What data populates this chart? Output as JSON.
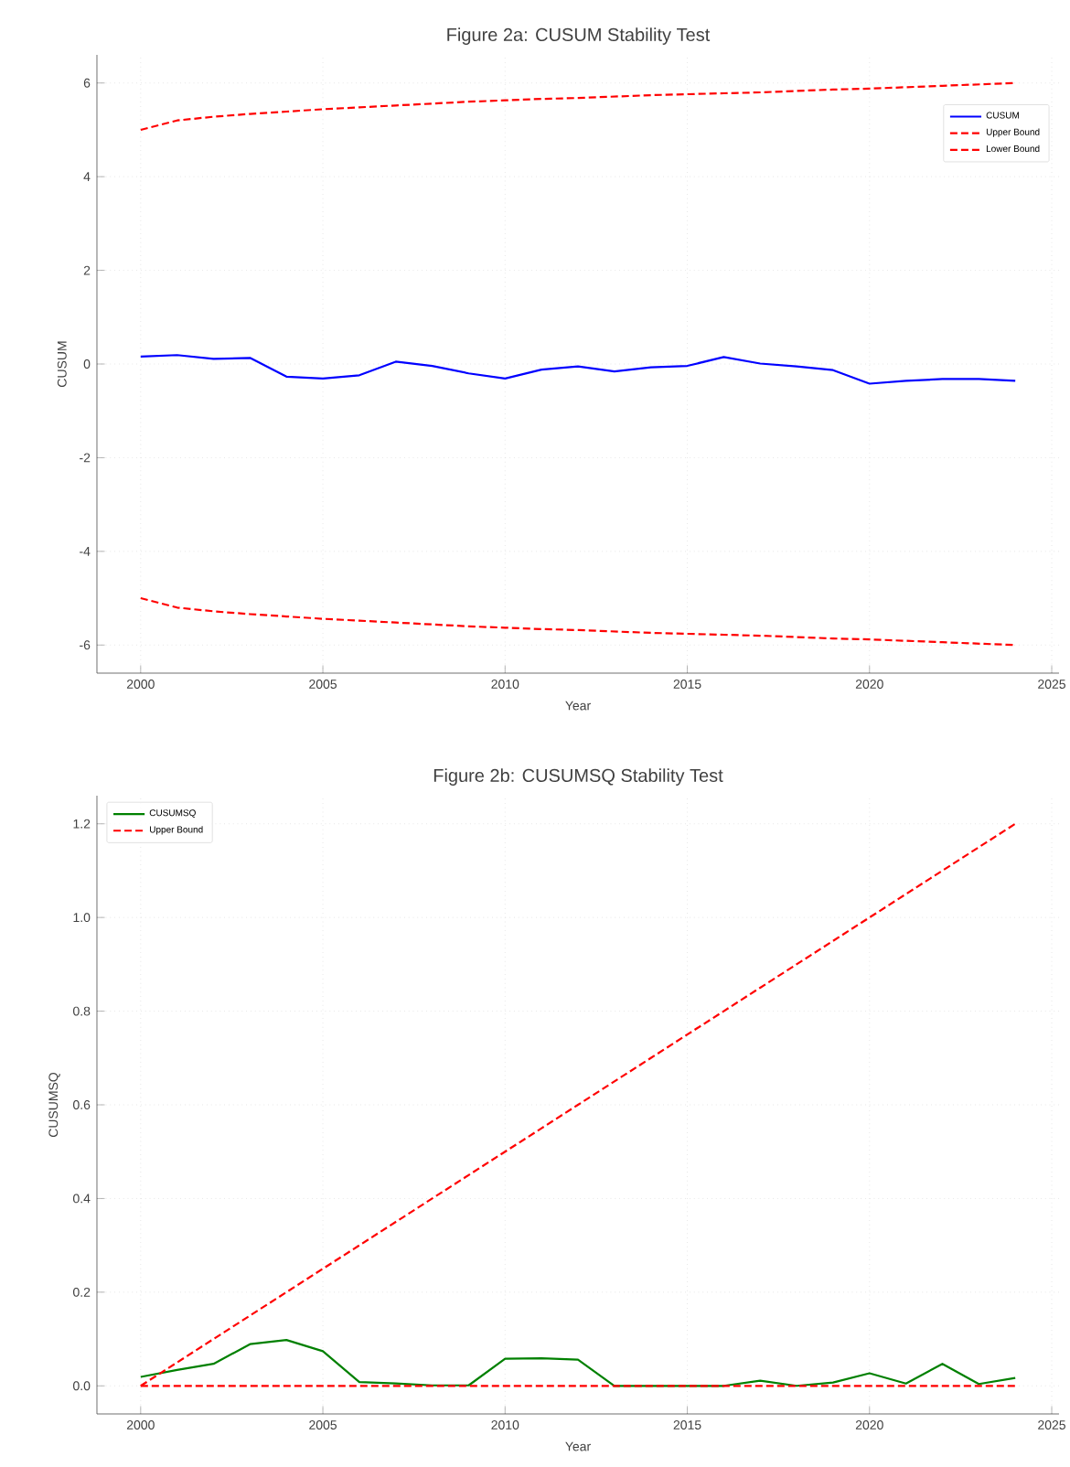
{
  "chart_data": [
    {
      "type": "line",
      "title": "Figure 2a: CUSUM Stability Test",
      "xlabel": "Year",
      "ylabel": "CUSUM",
      "x": [
        2000,
        2001,
        2002,
        2003,
        2004,
        2005,
        2006,
        2007,
        2008,
        2009,
        2010,
        2011,
        2012,
        2013,
        2014,
        2015,
        2016,
        2017,
        2018,
        2019,
        2020,
        2021,
        2022,
        2023,
        2024
      ],
      "series": [
        {
          "name": "CUSUM",
          "color": "#0000ff",
          "line_style": "solid",
          "values": [
            0.16,
            0.19,
            0.11,
            0.13,
            -0.27,
            -0.31,
            -0.24,
            0.05,
            -0.04,
            -0.2,
            -0.31,
            -0.12,
            -0.05,
            -0.16,
            -0.07,
            -0.04,
            0.15,
            0.01,
            -0.05,
            -0.13,
            -0.42,
            -0.36,
            -0.32,
            -0.32,
            -0.36
          ]
        },
        {
          "name": "Upper Bound",
          "color": "#ff0000",
          "line_style": "dashed",
          "values": [
            5.0,
            5.2,
            5.28,
            5.34,
            5.39,
            5.44,
            5.48,
            5.52,
            5.56,
            5.6,
            5.63,
            5.66,
            5.68,
            5.71,
            5.74,
            5.76,
            5.78,
            5.8,
            5.83,
            5.86,
            5.88,
            5.91,
            5.94,
            5.97,
            6.0
          ]
        },
        {
          "name": "Lower Bound",
          "color": "#ff0000",
          "line_style": "dashed",
          "values": [
            -5.0,
            -5.2,
            -5.28,
            -5.34,
            -5.39,
            -5.44,
            -5.48,
            -5.52,
            -5.56,
            -5.6,
            -5.63,
            -5.66,
            -5.68,
            -5.71,
            -5.74,
            -5.76,
            -5.78,
            -5.8,
            -5.83,
            -5.86,
            -5.88,
            -5.91,
            -5.94,
            -5.97,
            -6.0
          ]
        }
      ],
      "xlim": [
        1998.8,
        2025.2
      ],
      "xticks": [
        2000,
        2005,
        2010,
        2015,
        2020,
        2025
      ],
      "ylim": [
        -6.6,
        6.6
      ],
      "yticks": [
        -6,
        -4,
        -2,
        0,
        2,
        4,
        6
      ],
      "grid": true,
      "legend": "top right",
      "marker": "none"
    },
    {
      "type": "line",
      "title": "Figure 2b: CUSUMSQ Stability Test",
      "xlabel": "Year",
      "ylabel": "CUSUMSQ",
      "x": [
        2000,
        2001,
        2002,
        2003,
        2004,
        2005,
        2006,
        2007,
        2008,
        2009,
        2010,
        2011,
        2012,
        2013,
        2014,
        2015,
        2016,
        2017,
        2018,
        2019,
        2020,
        2021,
        2022,
        2023,
        2024
      ],
      "series": [
        {
          "name": "CUSUMSQ",
          "color": "#008000",
          "line_style": "solid",
          "values": [
            0.019,
            0.034,
            0.047,
            0.089,
            0.098,
            0.074,
            0.008,
            0.005,
            0.001,
            0.001,
            0.058,
            0.059,
            0.056,
            0,
            0,
            0,
            0,
            0.011,
            0,
            0.007,
            0.027,
            0.005,
            0.047,
            0.004,
            0.017
          ]
        },
        {
          "name": "Upper Bound",
          "color": "#ff0000",
          "line_style": "dashed",
          "values": [
            0,
            0.05,
            0.1,
            0.15,
            0.2,
            0.25,
            0.3,
            0.35,
            0.4,
            0.45,
            0.5,
            0.55,
            0.6,
            0.65,
            0.7,
            0.75,
            0.8,
            0.85,
            0.9,
            0.95,
            1.0,
            1.05,
            1.1,
            1.15,
            1.2
          ]
        },
        {
          "color": "#ff0000",
          "line_style": "dashed",
          "values": [
            0,
            0,
            0,
            0,
            0,
            0,
            0,
            0,
            0,
            0,
            0,
            0,
            0,
            0,
            0,
            0,
            0,
            0,
            0,
            0,
            0,
            0,
            0,
            0,
            0
          ]
        }
      ],
      "xlim": [
        1998.8,
        2025.2
      ],
      "xticks": [
        2000,
        2005,
        2010,
        2015,
        2020,
        2025
      ],
      "ylim": [
        -0.06,
        1.26
      ],
      "yticks": [
        {
          "value": 0,
          "label": "0.0"
        },
        {
          "value": 0.2,
          "label": "0.2"
        },
        {
          "value": 0.4,
          "label": "0.4"
        },
        {
          "value": 0.6,
          "label": "0.6"
        },
        {
          "value": 0.8,
          "label": "0.8"
        },
        {
          "value": 1.0,
          "label": "1.0"
        },
        {
          "value": 1.2,
          "label": "1.2"
        }
      ],
      "grid": true,
      "legend": "top left",
      "marker": "none"
    }
  ]
}
